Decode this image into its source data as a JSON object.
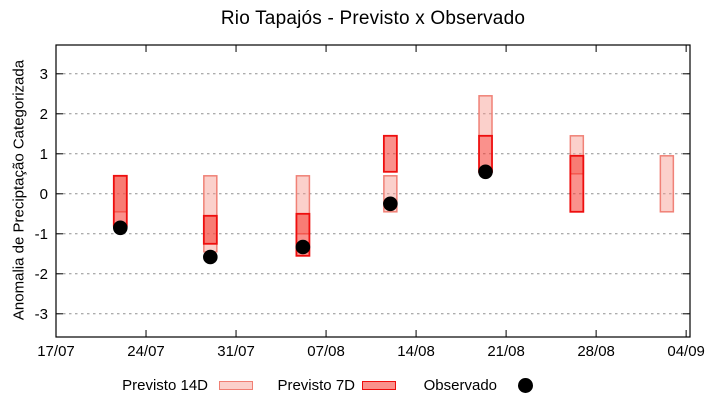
{
  "header": {
    "title": "Rio Tapajós - Previsto x Observado"
  },
  "chart_data": {
    "type": "candlestick-range",
    "title": "Rio Tapajós - Previsto x Observado",
    "ylabel": "Anomalia de Preciptação Categorizada",
    "grid": "horizontal-dotted",
    "ylim": [
      -3.58,
      3.72
    ],
    "yticks": [
      3,
      2,
      1,
      0,
      -1,
      -2,
      -3
    ],
    "xlim_days": [
      0,
      49.3
    ],
    "xticks": [
      {
        "label": "17/07",
        "day": 0
      },
      {
        "label": "24/07",
        "day": 7
      },
      {
        "label": "31/07",
        "day": 14
      },
      {
        "label": "07/08",
        "day": 21
      },
      {
        "label": "14/08",
        "day": 28
      },
      {
        "label": "21/08",
        "day": 35
      },
      {
        "label": "28/08",
        "day": 42
      },
      {
        "label": "04/09",
        "day": 49
      }
    ],
    "groups": [
      {
        "date": "22/07",
        "x_day": 5.0,
        "previsto14": [
          -0.45,
          0.45
        ],
        "previsto7": [
          -0.8,
          0.45
        ],
        "observado": -0.85
      },
      {
        "date": "29/07",
        "x_day": 12.0,
        "previsto14": [
          -1.45,
          0.45
        ],
        "previsto7": [
          -1.25,
          -0.55
        ],
        "observado": -1.58
      },
      {
        "date": "05/08",
        "x_day": 19.2,
        "previsto14": [
          -1.0,
          0.45
        ],
        "previsto7": [
          -1.55,
          -0.5
        ],
        "observado": -1.33
      },
      {
        "date": "12/08",
        "x_day": 26.0,
        "previsto14": [
          -0.45,
          0.45
        ],
        "previsto7": [
          0.55,
          1.45
        ],
        "observado": -0.25
      },
      {
        "date": "19/08",
        "x_day": 33.4,
        "previsto14": [
          1.45,
          2.45
        ],
        "previsto7": [
          0.55,
          1.45
        ],
        "observado": 0.55
      },
      {
        "date": "26/08",
        "x_day": 40.5,
        "previsto14": [
          0.5,
          1.45
        ],
        "previsto7": [
          -0.45,
          0.95
        ],
        "observado": null
      },
      {
        "date": "02/09",
        "x_day": 47.5,
        "previsto14": [
          -0.45,
          0.95
        ],
        "previsto7": null,
        "observado": null
      }
    ],
    "legend": [
      {
        "label": "Previsto 14D",
        "marker": "bar-14d"
      },
      {
        "label": "Previsto 7D",
        "marker": "bar-7d"
      },
      {
        "label": "Observado",
        "marker": "dot"
      }
    ],
    "colors": {
      "previsto14_fill": "rgba(246,150,140,0.45)",
      "previsto14_border": "rgba(238,118,106,0.9)",
      "previsto7_fill": "rgba(246,55,45,0.55)",
      "previsto7_border": "#ee0e0e",
      "observado_dot": "#000000",
      "gridline": "#909090",
      "axis": "#000000"
    }
  }
}
